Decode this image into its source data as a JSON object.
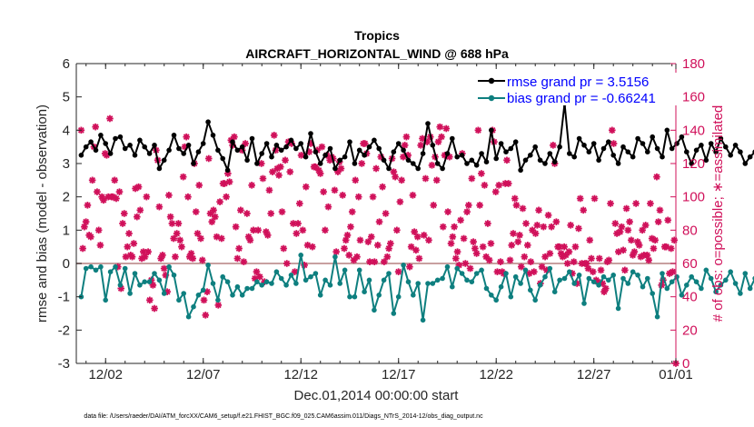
{
  "chart_data": {
    "type": "line",
    "title": "Tropics",
    "subtitle": "AIRCRAFT_HORIZONTAL_WIND @ 688 hPa",
    "xlabel": "Dec.01,2014 00:00:00 start",
    "ylabel": "rmse and bias (model - observation)",
    "ylabel_right": "# of obs: o=possible; ∗=assimilated",
    "footnote": "data file: /Users/raeder/DAI/ATM_forcXX/CAM6_setup/f.e21.FHIST_BGC.f09_025.CAM6assim.011/Diags_NTrS_2014-12/obs_diag_output.nc",
    "xlim": [
      0.5,
      31.2
    ],
    "ylim": [
      -3,
      6
    ],
    "ylim_right": [
      0,
      180
    ],
    "x_ticks": [
      2,
      7,
      12,
      17,
      22,
      27,
      32
    ],
    "x_tick_labels": [
      "12/02",
      "12/07",
      "12/12",
      "12/17",
      "12/22",
      "12/27",
      "01/01"
    ],
    "y_ticks": [
      -3,
      -2,
      -1,
      0,
      1,
      2,
      3,
      4,
      5,
      6
    ],
    "y_tick_labels": [
      "-3",
      "-2",
      "-1",
      "0",
      "1",
      "2",
      "3",
      "4",
      "5",
      "6"
    ],
    "y_ticks_right": [
      0,
      20,
      40,
      60,
      80,
      100,
      120,
      140,
      160,
      180
    ],
    "y_tick_labels_right": [
      "0",
      "20",
      "40",
      "60",
      "80",
      "100",
      "120",
      "140",
      "160",
      "180"
    ],
    "legend": [
      "rmse grand pr = 3.5156",
      "bias grand pr = -0.66241"
    ],
    "colors": {
      "rmse": "#000000",
      "bias": "#0e7f7f",
      "obs": "#d0105a",
      "zero": "#c8a0a0",
      "axis": "#262626"
    },
    "x_start": 0.75,
    "x_step": 0.25,
    "series": [
      {
        "name": "rmse",
        "values": [
          3.25,
          3.5,
          3.65,
          3.4,
          3.85,
          3.6,
          3.3,
          3.75,
          3.8,
          3.45,
          3.55,
          3.25,
          3.7,
          3.5,
          3.3,
          3.55,
          2.85,
          3.1,
          3.4,
          3.85,
          3.45,
          3.3,
          3.55,
          3.0,
          3.35,
          3.6,
          4.25,
          3.85,
          3.4,
          3.15,
          2.8,
          3.65,
          3.4,
          3.5,
          3.1,
          3.75,
          3.0,
          3.3,
          3.6,
          3.2,
          3.55,
          3.4,
          3.5,
          3.7,
          3.45,
          3.6,
          3.2,
          3.9,
          3.35,
          3.0,
          3.25,
          3.45,
          2.85,
          3.1,
          3.2,
          3.65,
          3.0,
          3.4,
          3.25,
          3.5,
          3.7,
          3.45,
          3.1,
          2.85,
          3.35,
          3.6,
          3.4,
          3.1,
          3.0,
          2.85,
          3.3,
          4.2,
          3.55,
          3.0,
          2.85,
          3.3,
          3.75,
          3.2,
          3.25,
          3.0,
          3.1,
          2.95,
          3.3,
          3.05,
          4.0,
          3.15,
          3.6,
          3.35,
          3.45,
          3.65,
          2.8,
          3.1,
          3.25,
          3.5,
          3.1,
          3.0,
          3.3,
          3.05,
          3.5,
          4.8,
          3.3,
          3.2,
          3.75,
          3.55,
          3.35,
          3.6,
          3.1,
          3.45,
          3.65,
          3.25,
          3.0,
          3.5,
          3.35,
          3.2,
          3.75,
          3.6,
          3.35,
          3.8,
          3.45,
          3.2,
          4.0,
          3.45,
          3.6,
          3.8,
          3.35,
          3.0,
          3.4,
          3.55,
          3.1,
          3.6,
          3.35,
          3.75,
          3.5,
          3.25,
          3.55,
          3.35,
          3.0,
          3.2,
          3.35,
          4.2,
          3.6,
          3.9,
          3.55,
          3.45,
          3.6,
          3.35,
          3.7,
          3.55,
          3.3,
          3.55,
          3.05,
          3.9,
          3.55,
          3.8,
          3.4,
          3.75,
          3.5,
          3.3,
          3.45,
          3.5,
          3.7,
          3.25,
          3.55,
          3.45,
          3.4,
          3.55,
          3.35,
          3.25,
          3.45,
          3.6,
          3.35,
          3.5,
          3.25,
          3.55,
          3.05,
          3.45,
          3.0,
          3.1,
          3.45,
          3.2,
          3.55,
          3.8,
          3.5,
          3.35,
          3.1,
          3.05,
          3.95,
          3.45,
          3.6,
          3.2,
          3.45,
          3.15,
          3.55,
          3.25,
          3.3,
          3.0,
          3.4,
          3.6,
          3.15,
          3.5,
          3.6,
          3.35,
          3.55,
          3.25,
          3.5,
          3.45,
          3.2,
          3.15,
          3.35,
          3.0,
          3.25,
          3.2,
          2.85,
          3.3,
          3.5,
          3.45,
          3.6,
          3.25,
          3.45,
          3.1,
          3.3,
          3.65,
          3.5,
          3.15,
          3.55,
          3.3,
          3.1,
          3.45,
          3.4,
          3.0,
          3.45,
          3.2,
          3.4,
          3.5,
          3.35,
          3.15,
          3.6,
          3.0,
          3.55,
          3.25,
          4.0,
          3.4,
          3.1,
          3.05,
          3.85,
          3.55,
          3.65,
          3.4,
          3.25,
          3.45,
          3.65,
          3.55,
          3.05,
          3.3,
          3.85,
          3.4,
          3.15,
          3.55,
          3.75,
          3.3,
          3.45,
          3.1,
          3.35,
          4.0,
          3.6,
          3.75,
          3.55,
          3.8,
          3.65,
          3.2,
          3.3,
          4.05,
          3.75,
          3.55,
          3.4,
          3.65,
          3.5,
          3.6,
          3.1,
          3.35,
          4.0,
          3.75,
          3.6,
          3.9,
          3.75
        ]
      },
      {
        "name": "bias",
        "values": [
          -1.0,
          -0.15,
          -0.1,
          -0.2,
          -0.1,
          -1.1,
          -0.25,
          -0.1,
          -0.65,
          -0.15,
          -0.9,
          -0.3,
          -0.65,
          -0.55,
          -0.55,
          -0.3,
          -0.5,
          -0.9,
          -0.1,
          -0.35,
          -1.1,
          -0.9,
          -1.6,
          -1.3,
          -0.95,
          -0.8,
          -0.05,
          -0.6,
          -1.1,
          -0.4,
          -0.55,
          -0.95,
          -0.7,
          -0.95,
          -0.75,
          -0.75,
          -0.55,
          -0.65,
          -0.55,
          -0.6,
          -0.25,
          -0.45,
          -0.65,
          -0.35,
          -0.6,
          0.25,
          -0.5,
          -0.4,
          -0.3,
          -0.95,
          -0.5,
          -0.65,
          0.2,
          -0.6,
          -0.2,
          -1.0,
          -1.0,
          -0.2,
          -0.85,
          -0.5,
          -1.4,
          -0.95,
          -0.5,
          -0.3,
          -1.5,
          -1.0,
          -0.05,
          -0.55,
          -0.95,
          -0.6,
          -1.7,
          -0.6,
          -0.6,
          -0.5,
          -0.45,
          -0.1,
          -0.7,
          -0.15,
          -0.3,
          -0.5,
          -0.55,
          -0.3,
          -0.2,
          -0.75,
          -0.95,
          -1.1,
          -0.7,
          -0.3,
          -1.0,
          -0.4,
          -0.6,
          -0.2,
          -0.8,
          -1.1,
          -0.65,
          -0.4,
          -0.15,
          -0.85,
          -0.5,
          -0.45,
          -0.25,
          -0.6,
          -0.35,
          -1.2,
          -0.45,
          -0.55,
          -0.65,
          -0.4,
          -0.5,
          -0.35,
          -1.35,
          -0.45,
          -0.6,
          -0.25,
          -0.35,
          -0.7,
          -0.45,
          -0.9,
          -1.6,
          -0.3,
          -0.75,
          -0.55,
          -0.4,
          -0.95,
          -0.65,
          -0.4,
          -0.55,
          -0.75,
          -0.2,
          -0.45,
          -0.85,
          -0.65,
          -0.5,
          -0.25,
          -0.6,
          -0.9,
          -0.3,
          -0.75,
          -0.45,
          -1.1,
          -0.5,
          -0.35,
          -0.85,
          -0.5,
          -0.6,
          -0.4,
          -0.9,
          -0.55,
          -0.35,
          -0.85,
          -0.5,
          -0.3,
          -0.8,
          -0.45,
          -0.6,
          -0.3,
          -0.65,
          -0.5,
          -0.35,
          -0.75,
          -1.0,
          -0.4,
          -0.55,
          -0.3,
          -0.45,
          -0.6,
          -0.65,
          -0.55,
          -0.8,
          -0.5,
          -0.6,
          -0.45,
          -0.35,
          -0.7,
          -1.1,
          -0.55,
          -0.3,
          -0.6,
          -0.35,
          -0.5,
          -0.35,
          -0.65,
          -1.0,
          -0.35,
          -0.55,
          -0.6,
          -0.45,
          -0.7,
          -1.2,
          -0.45,
          -0.6,
          -0.3,
          -0.55,
          -0.45,
          -0.85,
          -0.4,
          -0.65,
          -0.35,
          -1.15,
          -0.55,
          -0.4,
          -0.7,
          -0.45,
          -0.6,
          -0.95,
          -0.55,
          -0.35,
          -0.6,
          -0.45,
          -1.15,
          -0.5,
          -0.35,
          -0.65,
          -0.45,
          -0.8,
          -0.55,
          -0.9,
          -0.3,
          -0.6,
          -0.45,
          -0.35,
          -0.6,
          -0.2,
          -0.55,
          -0.4,
          -0.45,
          -0.35,
          -0.6,
          -0.3,
          -0.1,
          -0.5,
          -0.05,
          -0.8,
          -0.3,
          -0.15,
          -0.4,
          -0.1,
          -0.6,
          -0.35,
          -0.2,
          -0.45,
          -0.15,
          -0.6,
          -0.2,
          -0.4,
          -0.15,
          -0.5,
          -0.9,
          -0.4,
          -0.55,
          -0.35,
          -0.25,
          -0.45,
          -0.95,
          -0.55,
          -0.35,
          -0.45,
          -0.2,
          -0.6,
          -0.35,
          -0.95,
          -0.75,
          -0.4,
          -0.25,
          -0.1,
          -0.6,
          -0.95,
          -0.45,
          -1.15,
          -0.75,
          -0.3,
          -0.55,
          -0.45,
          -0.2,
          -0.4,
          -0.65,
          -0.3,
          -0.15,
          -0.35,
          -0.85,
          -0.45,
          -0.55,
          -0.1,
          0.2,
          -0.35,
          -0.2,
          -0.2,
          -0.05,
          -0.25,
          0.35,
          -0.15,
          -1.15
        ]
      },
      {
        "name": "obs_assimilated",
        "values": [
          140,
          69,
          82,
          85,
          95,
          77,
          76,
          110,
          130,
          142,
          103,
          80,
          71,
          100,
          98,
          126,
          125,
          100,
          147,
          100,
          100,
          110,
          99,
          58,
          103,
          45,
          84,
          90,
          64,
          70,
          78,
          65,
          64,
          72,
          105,
          88,
          106,
          92,
          63,
          67,
          64,
          100,
          67,
          38,
          50,
          47,
          33,
          128,
          122,
          94,
          63,
          65,
          57,
          53,
          43,
          101,
          88,
          84,
          75,
          64,
          78,
          84,
          74,
          70,
          112,
          130,
          136,
          100,
          64,
          66,
          63,
          120,
          91,
          78,
          107,
          75,
          62,
          38,
          29,
          43,
          123,
          90,
          85,
          92,
          88,
          76,
          35,
          97,
          75,
          108,
          108,
          100,
          114,
          109,
          134,
          131,
          136,
          82,
          63,
          69,
          92,
          128,
          61,
          132,
          90,
          76,
          74,
          107,
          80,
          51,
          55,
          80,
          52,
          120,
          111,
          49,
          79,
          77,
          104,
          90,
          115,
          137,
          128,
          117,
          113,
          118,
          91,
          69,
          122,
          60,
          133,
          115,
          132,
          84,
          55,
          78,
          84,
          96,
          125,
          80,
          59,
          106,
          71,
          127,
          132,
          70,
          118,
          118,
          128,
          116,
          114,
          130,
          103,
          80,
          125,
          94,
          122,
          124,
          123,
          104,
          67,
          115,
          121,
          117,
          101,
          69,
          74,
          77,
          65,
          82,
          91,
          62,
          110,
          64,
          100,
          74,
          120,
          132,
          132,
          126,
          73,
          61,
          76,
          100,
          61,
          117,
          71,
          85,
          124,
          106,
          61,
          90,
          64,
          69,
          72,
          123,
          115,
          112,
          80,
          55,
          97,
          110,
          124,
          131,
          136,
          125,
          58,
          70,
          101,
          79,
          68,
          76,
          63,
          131,
          135,
          77,
          111,
          133,
          74,
          136,
          119,
          95,
          124,
          110,
          133,
          142,
          136,
          82,
          125,
          141,
          91,
          124,
          72,
          76,
          82,
          63,
          67,
          59,
          86,
          126,
          75,
          60,
          91,
          95,
          57,
          111,
          73,
          69,
          66,
          140,
          95,
          114,
          70,
          107,
          64,
          84,
          62,
          72,
          140,
          133,
          103,
          55,
          107,
          61,
          55,
          54,
          108,
          122,
          108,
          62,
          71,
          78,
          99,
          95,
          73,
          77,
          58,
          93,
          64,
          84,
          71,
          54,
          61,
          80,
          55,
          78,
          83,
          92,
          48,
          58,
          82,
          64,
          56,
          89,
          66,
          82,
          131,
          120,
          85,
          70,
          70,
          66,
          64,
          70,
          65,
          60,
          67,
          83,
          54,
          61,
          70,
          48,
          81,
          99,
          60,
          92,
          60,
          60,
          57,
          74,
          63,
          55,
          99,
          50,
          49,
          63,
          56,
          48,
          43,
          45,
          61,
          62,
          96,
          140,
          132,
          84,
          78,
          67,
          79,
          82,
          68,
          56,
          93,
          80,
          85,
          74,
          65,
          67,
          96,
          73,
          71,
          64,
          80,
          65,
          83,
          65,
          62,
          96,
          75,
          69,
          74,
          112,
          85,
          92,
          47,
          50,
          70,
          70,
          86,
          54,
          69,
          55,
          74,
          0
        ]
      }
    ]
  }
}
